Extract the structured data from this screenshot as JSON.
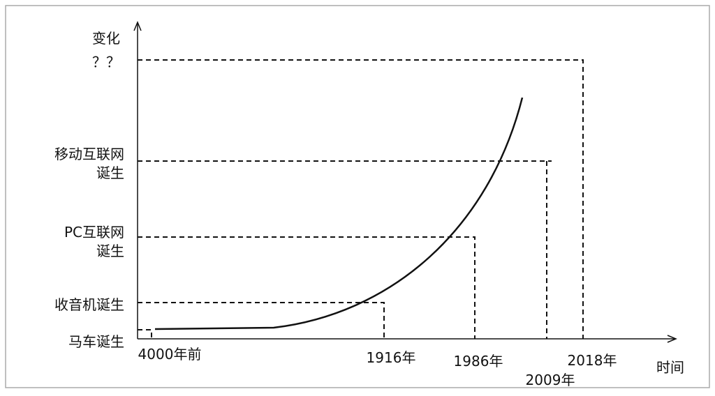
{
  "y_axis": {
    "label": "变化",
    "levels": [
      {
        "lines": [
          "？？"
        ]
      },
      {
        "lines": [
          "移动互联网",
          "诞生"
        ]
      },
      {
        "lines": [
          "PC互联网",
          "诞生"
        ]
      },
      {
        "lines": [
          "收音机诞生"
        ]
      },
      {
        "lines": [
          "马车诞生"
        ]
      }
    ]
  },
  "x_axis": {
    "label": "时间",
    "points": [
      "4000年前",
      "1916年",
      "1986年",
      "2009年",
      "2018年"
    ]
  }
}
